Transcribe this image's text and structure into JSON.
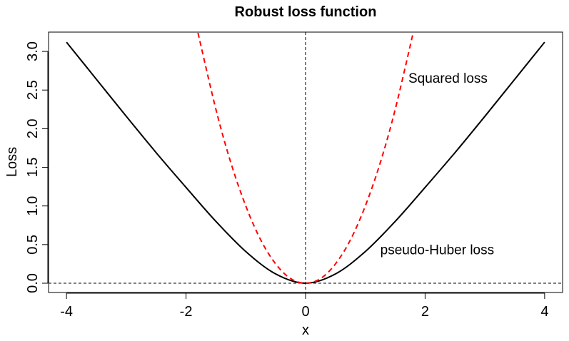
{
  "chart_data": {
    "type": "line",
    "title": "Robust loss function",
    "xlabel": "x",
    "ylabel": "Loss",
    "xlim": [
      -4.3,
      4.3
    ],
    "ylim": [
      -0.12,
      3.25
    ],
    "x_ticks": [
      "-4",
      "-2",
      "0",
      "2",
      "4"
    ],
    "y_ticks": [
      "0.0",
      "0.5",
      "1.0",
      "1.5",
      "2.0",
      "2.5",
      "3.0"
    ],
    "series": [
      {
        "name": "pseudo-Huber loss",
        "color": "#000000",
        "style": "solid",
        "x": [
          -4,
          -3.5,
          -3,
          -2.5,
          -2,
          -1.5,
          -1,
          -0.5,
          0,
          0.5,
          1,
          1.5,
          2,
          2.5,
          3,
          3.5,
          4
        ],
        "y": [
          3.12,
          2.64,
          2.16,
          1.69,
          1.24,
          0.8,
          0.41,
          0.12,
          0.0,
          0.12,
          0.41,
          0.8,
          1.24,
          1.69,
          2.16,
          2.64,
          3.12
        ]
      },
      {
        "name": "Squared loss",
        "color": "#ff0000",
        "style": "dashed",
        "x": [
          -1.8,
          -1.5,
          -1.25,
          -1,
          -0.75,
          -0.5,
          -0.25,
          0,
          0.25,
          0.5,
          0.75,
          1,
          1.25,
          1.5,
          1.8
        ],
        "y": [
          3.24,
          2.25,
          1.56,
          1.0,
          0.56,
          0.25,
          0.06,
          0.0,
          0.06,
          0.25,
          0.56,
          1.0,
          1.56,
          2.25,
          3.24
        ]
      }
    ],
    "reference_lines": [
      {
        "axis": "x",
        "value": 0,
        "style": "dashed",
        "color": "#000000"
      },
      {
        "axis": "y",
        "value": 0,
        "style": "dashed",
        "color": "#000000"
      }
    ],
    "annotations": [
      {
        "text": "Squared loss",
        "x": 1.72,
        "y": 2.65
      },
      {
        "text": "pseudo-Huber loss",
        "x": 1.25,
        "y": 0.43
      }
    ]
  }
}
